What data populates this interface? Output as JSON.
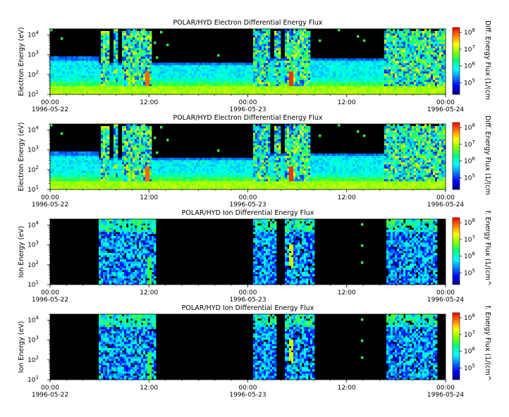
{
  "colors": {
    "background": "#ffffff",
    "no_data": "#000000",
    "colormap": [
      "#000080",
      "#0000ff",
      "#0080ff",
      "#00ffff",
      "#00ff80",
      "#80ff00",
      "#ffff00",
      "#ff8000",
      "#ff0000"
    ]
  },
  "chart_data": [
    {
      "type": "heatmap",
      "title": "POLAR/HYD  Electron Differential Energy Flux",
      "ylabel": "Electron Energy (eV)",
      "colorbar_label": "Diff. Energy Flux (1/(cm",
      "yscale": "log",
      "ylim": [
        10,
        20000
      ],
      "yticks": [
        "10",
        "10",
        "10",
        "10"
      ],
      "yticks_exp": [
        "1",
        "2",
        "3",
        "4"
      ],
      "colorbar_log_range": [
        4.3,
        8.3
      ],
      "colorbar_ticks": [
        "10",
        "10",
        "10",
        "10"
      ],
      "colorbar_ticks_exp": [
        "5",
        "6",
        "7",
        "8"
      ],
      "xticks": [
        {
          "time": "00:00",
          "date": "1996-05-22"
        },
        {
          "time": "12:00",
          "date": ""
        },
        {
          "time": "00:00",
          "date": "1996-05-23"
        },
        {
          "time": "12:00",
          "date": ""
        },
        {
          "time": "00:00",
          "date": "1996-05-24"
        }
      ],
      "xlim_hours": [
        0,
        48
      ]
    },
    {
      "type": "heatmap",
      "title": "POLAR/HYD  Electron Differential Energy Flux",
      "ylabel": "Electron Energy (eV)",
      "colorbar_label": "Diff. Energy Flux (1/(cm",
      "yscale": "log",
      "ylim": [
        10,
        20000
      ],
      "yticks": [
        "10",
        "10",
        "10",
        "10"
      ],
      "yticks_exp": [
        "1",
        "2",
        "3",
        "4"
      ],
      "colorbar_log_range": [
        4.3,
        8.3
      ],
      "colorbar_ticks": [
        "10",
        "10",
        "10",
        "10"
      ],
      "colorbar_ticks_exp": [
        "5",
        "6",
        "7",
        "8"
      ],
      "xticks": [
        {
          "time": "00:00",
          "date": "1996-05-22"
        },
        {
          "time": "12:00",
          "date": ""
        },
        {
          "time": "00:00",
          "date": "1996-05-23"
        },
        {
          "time": "12:00",
          "date": ""
        },
        {
          "time": "00:00",
          "date": "1996-05-24"
        }
      ],
      "xlim_hours": [
        0,
        48
      ]
    },
    {
      "type": "heatmap",
      "title": "POLAR/HYD  Ion Differential Energy Flux",
      "ylabel": "Ion Energy (eV)",
      "colorbar_label": "f. Energy Flux (1/(cm^",
      "yscale": "log",
      "ylim": [
        10,
        20000
      ],
      "yticks": [
        "10",
        "10",
        "10",
        "10"
      ],
      "yticks_exp": [
        "1",
        "2",
        "3",
        "4"
      ],
      "colorbar_log_range": [
        4.3,
        8.3
      ],
      "colorbar_ticks": [
        "10",
        "10",
        "10",
        "10"
      ],
      "colorbar_ticks_exp": [
        "5",
        "6",
        "7",
        "8"
      ],
      "xticks": [
        {
          "time": "00:00",
          "date": "1996-05-22"
        },
        {
          "time": "12:00",
          "date": ""
        },
        {
          "time": "00:00",
          "date": "1996-05-23"
        },
        {
          "time": "12:00",
          "date": ""
        },
        {
          "time": "00:00",
          "date": "1996-05-24"
        }
      ],
      "xlim_hours": [
        0,
        48
      ]
    },
    {
      "type": "heatmap",
      "title": "POLAR/HYD  Ion Differential Energy Flux",
      "ylabel": "Ion Energy (eV)",
      "colorbar_label": "f. Energy Flux (1/(cm^",
      "yscale": "log",
      "ylim": [
        10,
        20000
      ],
      "yticks": [
        "10",
        "10",
        "10",
        "10"
      ],
      "yticks_exp": [
        "1",
        "2",
        "3",
        "4"
      ],
      "colorbar_log_range": [
        4.3,
        8.3
      ],
      "colorbar_ticks": [
        "10",
        "10",
        "10",
        "10"
      ],
      "colorbar_ticks_exp": [
        "5",
        "6",
        "7",
        "8"
      ],
      "xticks": [
        {
          "time": "00:00",
          "date": "1996-05-22"
        },
        {
          "time": "12:00",
          "date": ""
        },
        {
          "time": "00:00",
          "date": "1996-05-23"
        },
        {
          "time": "12:00",
          "date": ""
        },
        {
          "time": "00:00",
          "date": "1996-05-24"
        }
      ],
      "xlim_hours": [
        0,
        48
      ]
    }
  ]
}
